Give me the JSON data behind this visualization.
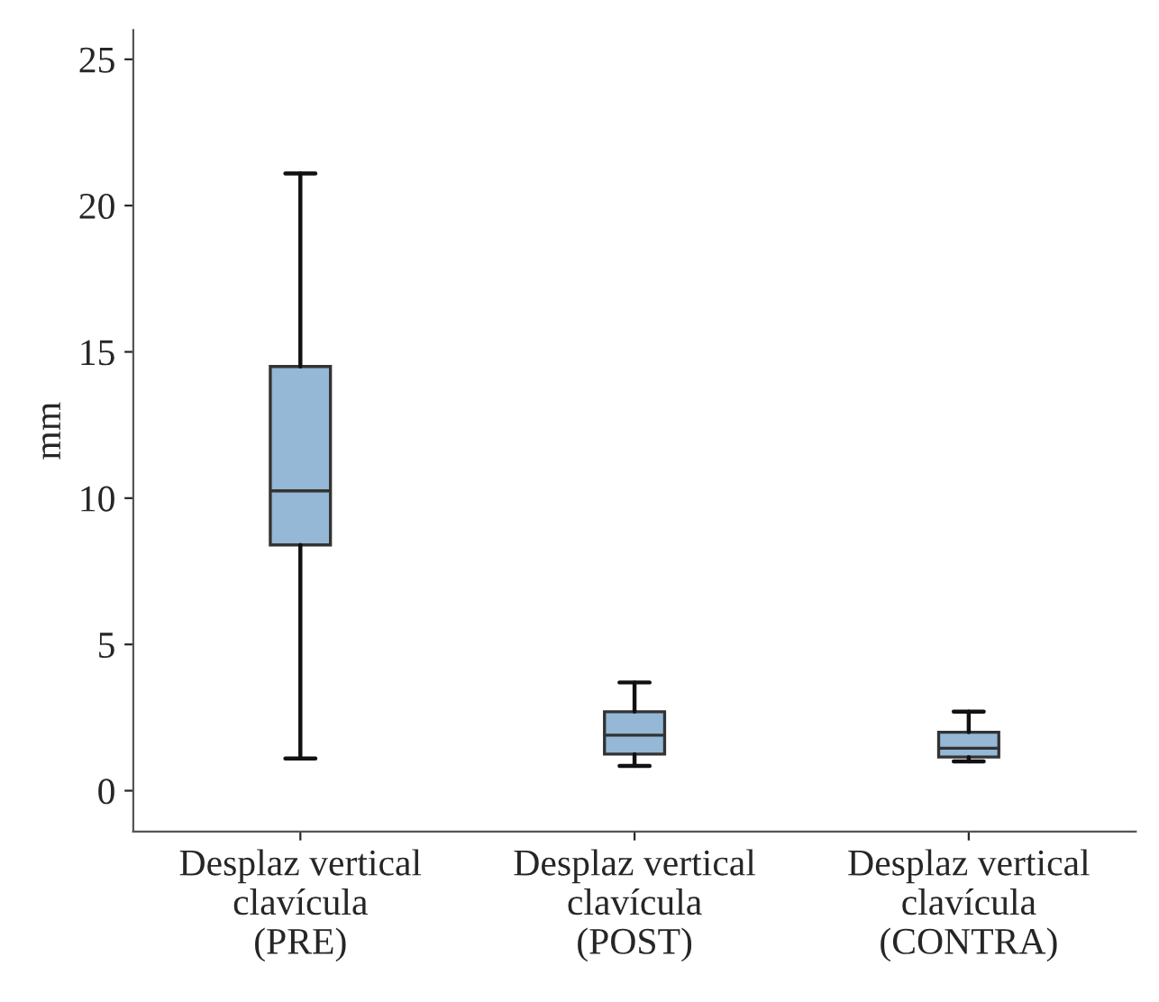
{
  "chart_data": {
    "type": "box",
    "ylabel": "mm",
    "categories": [
      "Desplaz vertical\nclavícula\n(PRE)",
      "Desplaz vertical\nclavícula\n(POST)",
      "Desplaz vertical\nclavícula\n(CONTRA)"
    ],
    "boxes": [
      {
        "low": 1.1,
        "q1": 8.4,
        "median": 10.25,
        "q3": 14.5,
        "high": 21.1
      },
      {
        "low": 0.85,
        "q1": 1.25,
        "median": 1.9,
        "q3": 2.7,
        "high": 3.7
      },
      {
        "low": 1.0,
        "q1": 1.15,
        "median": 1.45,
        "q3": 2.0,
        "high": 2.7
      }
    ],
    "color": "#94b8d6",
    "ylim": [
      -1.4,
      26
    ],
    "yticks": [
      0,
      5,
      10,
      15,
      20,
      25
    ],
    "grid": false
  }
}
